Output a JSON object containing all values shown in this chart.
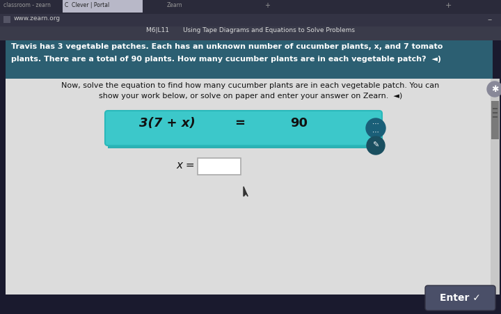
{
  "bg_outer": "#1a1a2e",
  "browser_top_bg": "#2b2b3b",
  "browser_tab_bg": "#1e1e2e",
  "browser_active_tab_bg": "#bfc0c8",
  "tab1_text": "classroom - zearn",
  "tab2_text": "C  Clever | Portal",
  "tab3_text": "Zearn",
  "url_text": "www.zearn.org",
  "header_bg": "#3a3b4a",
  "header_text": "M6|L11       Using Tape Diagrams and Equations to Solve Problems",
  "problem_bg": "#2c5f72",
  "problem_line1": "Travis has 3 vegetable patches. Each has an unknown number of cucumber plants, x, and 7 tomato",
  "problem_line2": "plants. There are a total of 90 plants. How many cucumber plants are in each vegetable patch?  ◄)",
  "work_area_bg": "#dcdcdc",
  "instr_line1": "Now, solve the equation to find how many cucumber plants are in each vegetable patch. You can",
  "instr_line2": "show your work below, or solve on paper and enter your answer on Zearn.  ◄)",
  "eq_box_bg": "#3cc8ca",
  "eq_shadow_bg": "#2eb0b2",
  "eq_left": "3(7 + x)",
  "eq_equals": "=",
  "eq_right": "90",
  "x_label": "x =",
  "input_box_bg": "#ffffff",
  "input_box_border": "#aaaaaa",
  "scrollbar_track_bg": "#c8c8c8",
  "scrollbar_handle_bg": "#7a7a7a",
  "star_icon_bg": "#888898",
  "dots_icon_bg": "#1a5f78",
  "pencil_icon_bg": "#1a4f60",
  "enter_btn_bg": "#4a4f68",
  "enter_btn_text": "Enter ✓",
  "enter_btn_text_color": "#ffffff",
  "cursor_color": "#333333"
}
